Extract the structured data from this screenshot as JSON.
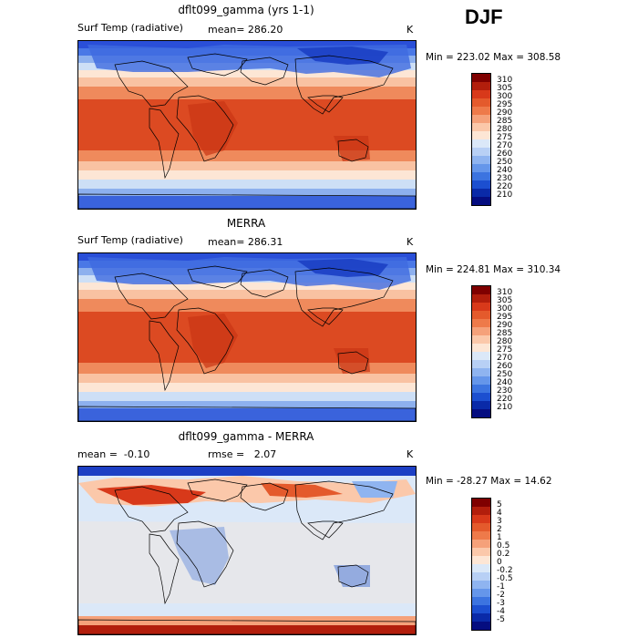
{
  "season_label": "DJF",
  "panels": [
    {
      "title": "dflt099_gamma (yrs 1-1)",
      "left_label": "Surf Temp (radiative)",
      "stat_label": "mean=",
      "stat_value": "286.20",
      "unit": "K",
      "minmax": "Min = 223.02 Max = 308.58",
      "colorbar_ticks": [
        "310",
        "305",
        "300",
        "295",
        "290",
        "285",
        "280",
        "275",
        "270",
        "260",
        "250",
        "240",
        "230",
        "220",
        "210"
      ],
      "colorbar_colors": [
        "#7f0000",
        "#b21e0c",
        "#d8391a",
        "#e45a2c",
        "#ee7a4a",
        "#f5a17a",
        "#fbc8aa",
        "#fde6d5",
        "#dbe8f8",
        "#b8d0f5",
        "#8fb4f0",
        "#6596ea",
        "#3c74e0",
        "#1c4fd0",
        "#0a2aa8",
        "#050d80"
      ],
      "palette": "absolute"
    },
    {
      "title": "MERRA",
      "left_label": "Surf Temp (radiative)",
      "stat_label": "mean=",
      "stat_value": "286.31",
      "unit": "K",
      "minmax": "Min = 224.81 Max = 310.34",
      "colorbar_ticks": [
        "310",
        "305",
        "300",
        "295",
        "290",
        "285",
        "280",
        "275",
        "270",
        "260",
        "250",
        "240",
        "230",
        "220",
        "210"
      ],
      "colorbar_colors": [
        "#7f0000",
        "#b21e0c",
        "#d8391a",
        "#e45a2c",
        "#ee7a4a",
        "#f5a17a",
        "#fbc8aa",
        "#fde6d5",
        "#dbe8f8",
        "#b8d0f5",
        "#8fb4f0",
        "#6596ea",
        "#3c74e0",
        "#1c4fd0",
        "#0a2aa8",
        "#050d80"
      ],
      "palette": "absolute"
    },
    {
      "title": "dflt099_gamma - MERRA",
      "left_label": "mean =",
      "left_value": "-0.10",
      "stat_label": "rmse =",
      "stat_value": "2.07",
      "unit": "K",
      "minmax": "Min = -28.27 Max =   14.62",
      "colorbar_ticks": [
        "5",
        "4",
        "3",
        "2",
        "1",
        "0.5",
        "0.2",
        "0",
        "-0.2",
        "-0.5",
        "-1",
        "-2",
        "-3",
        "-4",
        "-5"
      ],
      "colorbar_colors": [
        "#7f0000",
        "#b21e0c",
        "#d8391a",
        "#e45a2c",
        "#ee7a4a",
        "#f5a17a",
        "#fbc8aa",
        "#fde6d5",
        "#dbe8f8",
        "#b8d0f5",
        "#8fb4f0",
        "#6596ea",
        "#3c74e0",
        "#1c4fd0",
        "#0a2aa8",
        "#050d80"
      ],
      "palette": "difference"
    }
  ]
}
